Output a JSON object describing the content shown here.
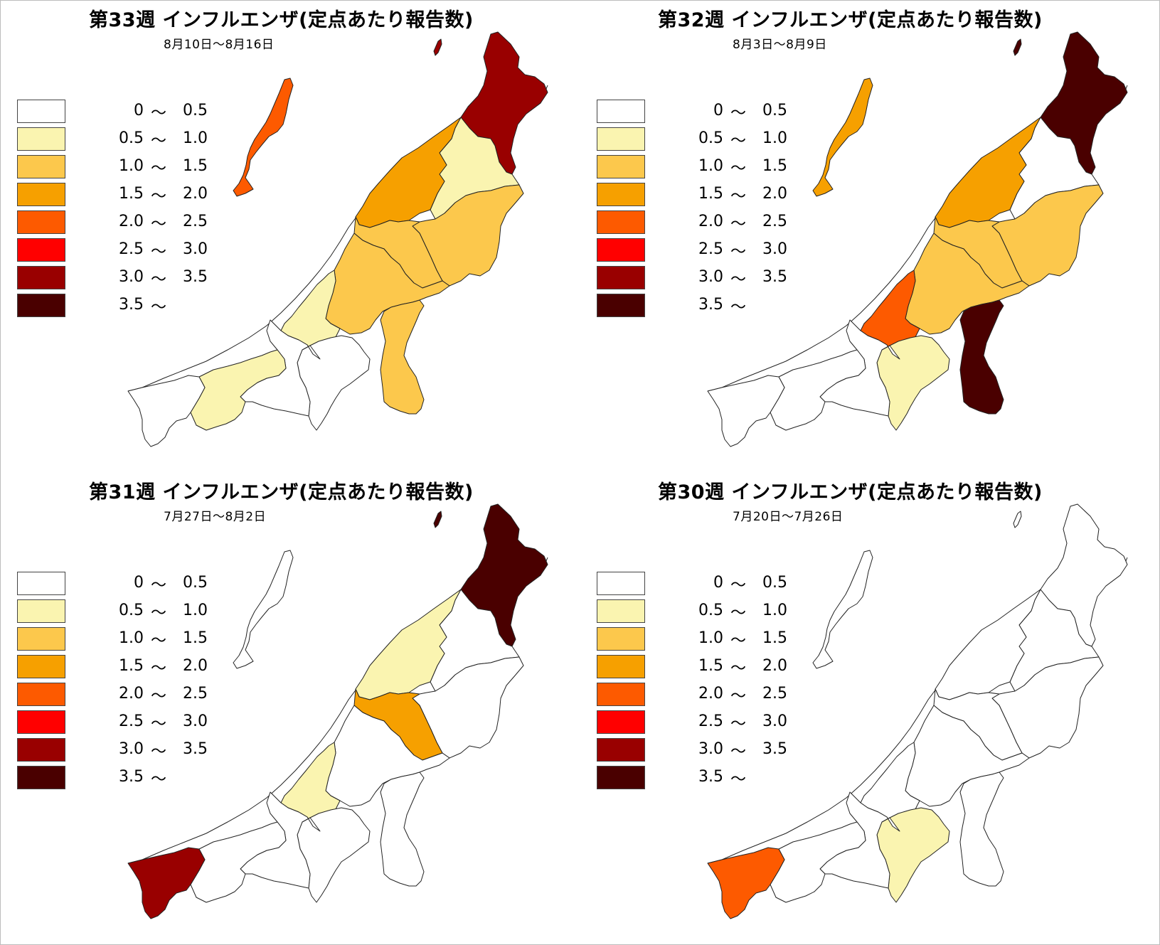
{
  "legend": {
    "bins": [
      {
        "low": "0",
        "tilde": "〜",
        "high": "0.5",
        "color": "#ffffff"
      },
      {
        "low": "0.5",
        "tilde": "〜",
        "high": "1.0",
        "color": "#faf4b0"
      },
      {
        "low": "1.0",
        "tilde": "〜",
        "high": "1.5",
        "color": "#fcc84c"
      },
      {
        "low": "1.5",
        "tilde": "〜",
        "high": "2.0",
        "color": "#f6a000"
      },
      {
        "low": "2.0",
        "tilde": "〜",
        "high": "2.5",
        "color": "#fd5a00"
      },
      {
        "low": "2.5",
        "tilde": "〜",
        "high": "3.0",
        "color": "#ff0000"
      },
      {
        "low": "3.0",
        "tilde": "〜",
        "high": "3.5",
        "color": "#990000"
      },
      {
        "low": "3.5",
        "tilde": "〜",
        "high": "",
        "color": "#4a0000"
      }
    ]
  },
  "panels": [
    {
      "title": "第33週 インフルエンザ(定点あたり報告数)",
      "date": "8月10日〜8月16日",
      "fills": {
        "north": 7,
        "sado": 5,
        "awashima": 7,
        "shibata": 2,
        "niigata": 4,
        "east": 3,
        "sanjo": 3,
        "nagaoka": 3,
        "kashiwazaki": 2,
        "uonuma": 3,
        "minamiuonuma": 1,
        "tokamachi": 1,
        "joetsu": 2,
        "itoigawa": 1
      }
    },
    {
      "title": "第32週 インフルエンザ(定点あたり報告数)",
      "date": "8月3日〜8月9日",
      "fills": {
        "north": 8,
        "sado": 4,
        "awashima": 8,
        "shibata": 1,
        "niigata": 4,
        "east": 3,
        "sanjo": 3,
        "nagaoka": 3,
        "kashiwazaki": 5,
        "uonuma": 8,
        "minamiuonuma": 2,
        "tokamachi": 1,
        "joetsu": 1,
        "itoigawa": 1
      }
    },
    {
      "title": "第31週 インフルエンザ(定点あたり報告数)",
      "date": "7月27日〜8月2日",
      "fills": {
        "north": 8,
        "sado": 1,
        "awashima": 8,
        "shibata": 1,
        "niigata": 2,
        "east": 1,
        "sanjo": 4,
        "nagaoka": 1,
        "kashiwazaki": 2,
        "uonuma": 1,
        "minamiuonuma": 1,
        "tokamachi": 1,
        "joetsu": 1,
        "itoigawa": 7
      }
    },
    {
      "title": "第30週 インフルエンザ(定点あたり報告数)",
      "date": "7月20日〜7月26日",
      "fills": {
        "north": 1,
        "sado": 1,
        "awashima": 1,
        "shibata": 1,
        "niigata": 1,
        "east": 1,
        "sanjo": 1,
        "nagaoka": 1,
        "kashiwazaki": 1,
        "uonuma": 1,
        "minamiuonuma": 2,
        "tokamachi": 1,
        "joetsu": 1,
        "itoigawa": 5
      }
    }
  ]
}
